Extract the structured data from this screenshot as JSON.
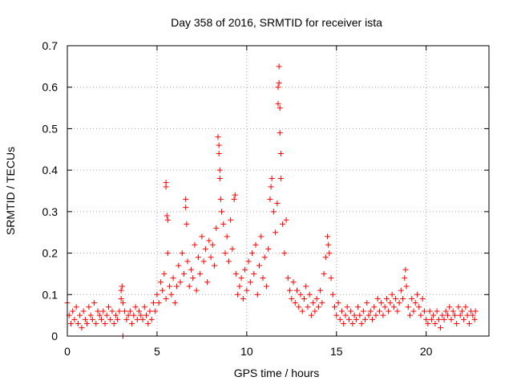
{
  "chart_data": {
    "type": "scatter",
    "title": "Day 358 of 2016, SRMTID for receiver ista",
    "xlabel": "GPS time / hours",
    "ylabel": "SRMTID / TECUs",
    "xlim": [
      0,
      23.5
    ],
    "ylim": [
      0,
      0.7
    ],
    "xticks": [
      0,
      5,
      10,
      15,
      20
    ],
    "yticks": [
      0,
      0.1,
      0.2,
      0.3,
      0.4,
      0.5,
      0.6,
      0.7
    ],
    "ytick_labels": [
      "0",
      "0.1",
      "0.2",
      "0.3",
      "0.4",
      "0.5",
      "0.6",
      "0.7"
    ],
    "grid": true,
    "marker": "+",
    "color": "#ff0000",
    "series": [
      {
        "name": "SRMTID",
        "points": [
          [
            0.0,
            0.08
          ],
          [
            0.1,
            0.05
          ],
          [
            0.2,
            0.03
          ],
          [
            0.3,
            0.06
          ],
          [
            0.4,
            0.04
          ],
          [
            0.5,
            0.07
          ],
          [
            0.6,
            0.03
          ],
          [
            0.7,
            0.05
          ],
          [
            0.8,
            0.02
          ],
          [
            0.9,
            0.06
          ],
          [
            1.0,
            0.04
          ],
          [
            1.1,
            0.03
          ],
          [
            1.2,
            0.07
          ],
          [
            1.3,
            0.05
          ],
          [
            1.4,
            0.04
          ],
          [
            1.5,
            0.08
          ],
          [
            1.6,
            0.03
          ],
          [
            1.7,
            0.06
          ],
          [
            1.8,
            0.05
          ],
          [
            1.9,
            0.04
          ],
          [
            2.0,
            0.06
          ],
          [
            2.1,
            0.03
          ],
          [
            2.2,
            0.05
          ],
          [
            2.3,
            0.07
          ],
          [
            2.4,
            0.04
          ],
          [
            2.5,
            0.06
          ],
          [
            2.6,
            0.03
          ],
          [
            2.7,
            0.05
          ],
          [
            2.8,
            0.04
          ],
          [
            2.9,
            0.06
          ],
          [
            3.0,
            0.11
          ],
          [
            3.0,
            0.09
          ],
          [
            3.05,
            0.12
          ],
          [
            3.1,
            0.08
          ],
          [
            3.1,
            0.0
          ],
          [
            3.2,
            0.06
          ],
          [
            3.3,
            0.04
          ],
          [
            3.4,
            0.05
          ],
          [
            3.5,
            0.06
          ],
          [
            3.6,
            0.03
          ],
          [
            3.7,
            0.05
          ],
          [
            3.8,
            0.07
          ],
          [
            3.9,
            0.04
          ],
          [
            4.0,
            0.06
          ],
          [
            4.1,
            0.05
          ],
          [
            4.2,
            0.04
          ],
          [
            4.3,
            0.07
          ],
          [
            4.4,
            0.05
          ],
          [
            4.5,
            0.03
          ],
          [
            4.6,
            0.06
          ],
          [
            4.7,
            0.04
          ],
          [
            4.8,
            0.08
          ],
          [
            4.9,
            0.06
          ],
          [
            5.0,
            0.1
          ],
          [
            5.1,
            0.08
          ],
          [
            5.2,
            0.13
          ],
          [
            5.3,
            0.11
          ],
          [
            5.4,
            0.15
          ],
          [
            5.5,
            0.09
          ],
          [
            5.5,
            0.37
          ],
          [
            5.5,
            0.36
          ],
          [
            5.55,
            0.29
          ],
          [
            5.6,
            0.28
          ],
          [
            5.6,
            0.2
          ],
          [
            5.7,
            0.12
          ],
          [
            5.8,
            0.1
          ],
          [
            5.9,
            0.14
          ],
          [
            6.0,
            0.08
          ],
          [
            6.1,
            0.12
          ],
          [
            6.2,
            0.17
          ],
          [
            6.3,
            0.13
          ],
          [
            6.4,
            0.2
          ],
          [
            6.5,
            0.15
          ],
          [
            6.6,
            0.31
          ],
          [
            6.6,
            0.33
          ],
          [
            6.65,
            0.27
          ],
          [
            6.7,
            0.18
          ],
          [
            6.8,
            0.12
          ],
          [
            6.9,
            0.16
          ],
          [
            7.0,
            0.14
          ],
          [
            7.1,
            0.22
          ],
          [
            7.2,
            0.11
          ],
          [
            7.3,
            0.19
          ],
          [
            7.4,
            0.15
          ],
          [
            7.5,
            0.24
          ],
          [
            7.6,
            0.18
          ],
          [
            7.7,
            0.21
          ],
          [
            7.8,
            0.13
          ],
          [
            7.9,
            0.23
          ],
          [
            8.0,
            0.19
          ],
          [
            8.1,
            0.22
          ],
          [
            8.2,
            0.17
          ],
          [
            8.3,
            0.26
          ],
          [
            8.4,
            0.48
          ],
          [
            8.45,
            0.46
          ],
          [
            8.45,
            0.44
          ],
          [
            8.5,
            0.4
          ],
          [
            8.5,
            0.38
          ],
          [
            8.55,
            0.33
          ],
          [
            8.6,
            0.3
          ],
          [
            8.7,
            0.27
          ],
          [
            8.8,
            0.2
          ],
          [
            8.9,
            0.24
          ],
          [
            9.0,
            0.18
          ],
          [
            9.1,
            0.28
          ],
          [
            9.2,
            0.21
          ],
          [
            9.3,
            0.33
          ],
          [
            9.35,
            0.34
          ],
          [
            9.4,
            0.15
          ],
          [
            9.5,
            0.1
          ],
          [
            9.6,
            0.12
          ],
          [
            9.7,
            0.14
          ],
          [
            9.8,
            0.09
          ],
          [
            9.9,
            0.16
          ],
          [
            10.0,
            0.11
          ],
          [
            10.1,
            0.18
          ],
          [
            10.2,
            0.13
          ],
          [
            10.3,
            0.2
          ],
          [
            10.4,
            0.15
          ],
          [
            10.5,
            0.22
          ],
          [
            10.6,
            0.1
          ],
          [
            10.7,
            0.17
          ],
          [
            10.8,
            0.24
          ],
          [
            10.9,
            0.14
          ],
          [
            11.0,
            0.19
          ],
          [
            11.1,
            0.12
          ],
          [
            11.2,
            0.21
          ],
          [
            11.3,
            0.33
          ],
          [
            11.35,
            0.36
          ],
          [
            11.4,
            0.38
          ],
          [
            11.5,
            0.3
          ],
          [
            11.6,
            0.25
          ],
          [
            11.7,
            0.32
          ],
          [
            11.75,
            0.56
          ],
          [
            11.75,
            0.6
          ],
          [
            11.8,
            0.65
          ],
          [
            11.8,
            0.61
          ],
          [
            11.85,
            0.55
          ],
          [
            11.85,
            0.49
          ],
          [
            11.9,
            0.44
          ],
          [
            11.9,
            0.38
          ],
          [
            12.0,
            0.27
          ],
          [
            12.1,
            0.2
          ],
          [
            12.2,
            0.28
          ],
          [
            12.3,
            0.14
          ],
          [
            12.4,
            0.11
          ],
          [
            12.5,
            0.09
          ],
          [
            12.6,
            0.13
          ],
          [
            12.7,
            0.08
          ],
          [
            12.8,
            0.11
          ],
          [
            12.9,
            0.07
          ],
          [
            13.0,
            0.1
          ],
          [
            13.1,
            0.06
          ],
          [
            13.2,
            0.09
          ],
          [
            13.3,
            0.12
          ],
          [
            13.4,
            0.07
          ],
          [
            13.5,
            0.1
          ],
          [
            13.6,
            0.05
          ],
          [
            13.7,
            0.08
          ],
          [
            13.8,
            0.06
          ],
          [
            13.9,
            0.09
          ],
          [
            14.0,
            0.07
          ],
          [
            14.1,
            0.11
          ],
          [
            14.2,
            0.08
          ],
          [
            14.3,
            0.15
          ],
          [
            14.4,
            0.19
          ],
          [
            14.5,
            0.24
          ],
          [
            14.55,
            0.22
          ],
          [
            14.6,
            0.2
          ],
          [
            14.7,
            0.14
          ],
          [
            14.8,
            0.1
          ],
          [
            14.9,
            0.07
          ],
          [
            15.0,
            0.05
          ],
          [
            15.1,
            0.08
          ],
          [
            15.2,
            0.04
          ],
          [
            15.3,
            0.06
          ],
          [
            15.4,
            0.03
          ],
          [
            15.5,
            0.05
          ],
          [
            15.6,
            0.07
          ],
          [
            15.7,
            0.04
          ],
          [
            15.8,
            0.06
          ],
          [
            15.9,
            0.03
          ],
          [
            16.0,
            0.05
          ],
          [
            16.1,
            0.04
          ],
          [
            16.2,
            0.07
          ],
          [
            16.3,
            0.05
          ],
          [
            16.4,
            0.03
          ],
          [
            16.5,
            0.06
          ],
          [
            16.6,
            0.04
          ],
          [
            16.7,
            0.08
          ],
          [
            16.8,
            0.05
          ],
          [
            16.9,
            0.06
          ],
          [
            17.0,
            0.04
          ],
          [
            17.1,
            0.07
          ],
          [
            17.2,
            0.05
          ],
          [
            17.3,
            0.09
          ],
          [
            17.4,
            0.06
          ],
          [
            17.5,
            0.08
          ],
          [
            17.6,
            0.05
          ],
          [
            17.7,
            0.07
          ],
          [
            17.8,
            0.09
          ],
          [
            17.9,
            0.06
          ],
          [
            18.0,
            0.08
          ],
          [
            18.1,
            0.1
          ],
          [
            18.2,
            0.07
          ],
          [
            18.3,
            0.09
          ],
          [
            18.4,
            0.06
          ],
          [
            18.5,
            0.08
          ],
          [
            18.6,
            0.11
          ],
          [
            18.7,
            0.09
          ],
          [
            18.8,
            0.14
          ],
          [
            18.85,
            0.16
          ],
          [
            18.9,
            0.12
          ],
          [
            19.0,
            0.07
          ],
          [
            19.1,
            0.05
          ],
          [
            19.2,
            0.09
          ],
          [
            19.3,
            0.06
          ],
          [
            19.4,
            0.08
          ],
          [
            19.5,
            0.1
          ],
          [
            19.6,
            0.07
          ],
          [
            19.7,
            0.05
          ],
          [
            19.8,
            0.09
          ],
          [
            19.9,
            0.06
          ],
          [
            20.0,
            0.04
          ],
          [
            20.1,
            0.03
          ],
          [
            20.2,
            0.06
          ],
          [
            20.3,
            0.04
          ],
          [
            20.4,
            0.05
          ],
          [
            20.5,
            0.03
          ],
          [
            20.6,
            0.06
          ],
          [
            20.7,
            0.04
          ],
          [
            20.8,
            0.02
          ],
          [
            20.9,
            0.05
          ],
          [
            21.0,
            0.04
          ],
          [
            21.1,
            0.06
          ],
          [
            21.2,
            0.05
          ],
          [
            21.3,
            0.07
          ],
          [
            21.4,
            0.04
          ],
          [
            21.5,
            0.06
          ],
          [
            21.6,
            0.05
          ],
          [
            21.7,
            0.03
          ],
          [
            21.8,
            0.07
          ],
          [
            21.9,
            0.05
          ],
          [
            22.0,
            0.06
          ],
          [
            22.1,
            0.04
          ],
          [
            22.2,
            0.07
          ],
          [
            22.3,
            0.05
          ],
          [
            22.4,
            0.03
          ],
          [
            22.5,
            0.06
          ],
          [
            22.6,
            0.05
          ],
          [
            22.7,
            0.04
          ],
          [
            22.75,
            0.06
          ]
        ]
      }
    ]
  }
}
